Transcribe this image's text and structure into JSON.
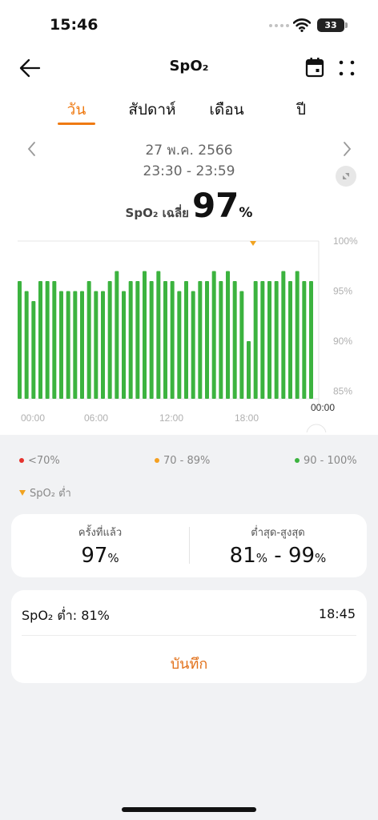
{
  "status_bar": {
    "time": "15:46",
    "battery": "33"
  },
  "header": {
    "title": "SpO₂"
  },
  "tabs": [
    {
      "label": "วัน",
      "active": true
    },
    {
      "label": "สัปดาห์",
      "active": false
    },
    {
      "label": "เดือน",
      "active": false
    },
    {
      "label": "ปี",
      "active": false
    }
  ],
  "date_nav": {
    "date": "27 พ.ค. 2566",
    "time_range": "23:30 - 23:59"
  },
  "average": {
    "label": "SpO₂ เฉลี่ย",
    "value": "97",
    "unit": "%"
  },
  "chart_data": {
    "type": "bar",
    "ylim": [
      84,
      100
    ],
    "yticks": [
      "100%",
      "95%",
      "90%",
      "85%"
    ],
    "xticks": [
      "00:00",
      "06:00",
      "12:00",
      "18:00",
      "00:00"
    ],
    "low_marker_time": "18:45",
    "series": [
      {
        "color": "#3cb33f",
        "values": [
          96,
          95,
          94,
          96,
          96,
          96,
          95,
          95,
          95,
          95,
          96,
          95,
          95,
          96,
          97,
          95,
          96,
          96,
          97,
          96,
          97,
          96,
          96,
          95,
          96,
          95,
          96,
          96,
          97,
          96,
          97,
          96,
          95,
          90,
          96,
          96,
          96,
          96,
          97,
          96,
          97,
          96,
          96
        ]
      }
    ]
  },
  "legend": {
    "red": {
      "label": "<70%",
      "color": "#e5322d"
    },
    "orange": {
      "label": "70 - 89%",
      "color": "#f5a020"
    },
    "green": {
      "label": "90 - 100%",
      "color": "#3cb33f"
    },
    "low": {
      "label": "SpO₂ ต่ำ"
    }
  },
  "summary": {
    "latest_label": "ครั้งที่แล้ว",
    "latest_value": "97",
    "latest_unit": "%",
    "minmax_label": "ต่ำสุด-สูงสุด",
    "min": "81",
    "min_unit": "%",
    "dash": " - ",
    "max": "99",
    "max_unit": "%"
  },
  "low_event": {
    "label": "SpO₂ ต่ำ: 81%",
    "time": "18:45",
    "record_button": "บันทึก"
  },
  "colors": {
    "accent": "#ef7a12",
    "bar": "#3cb33f"
  }
}
